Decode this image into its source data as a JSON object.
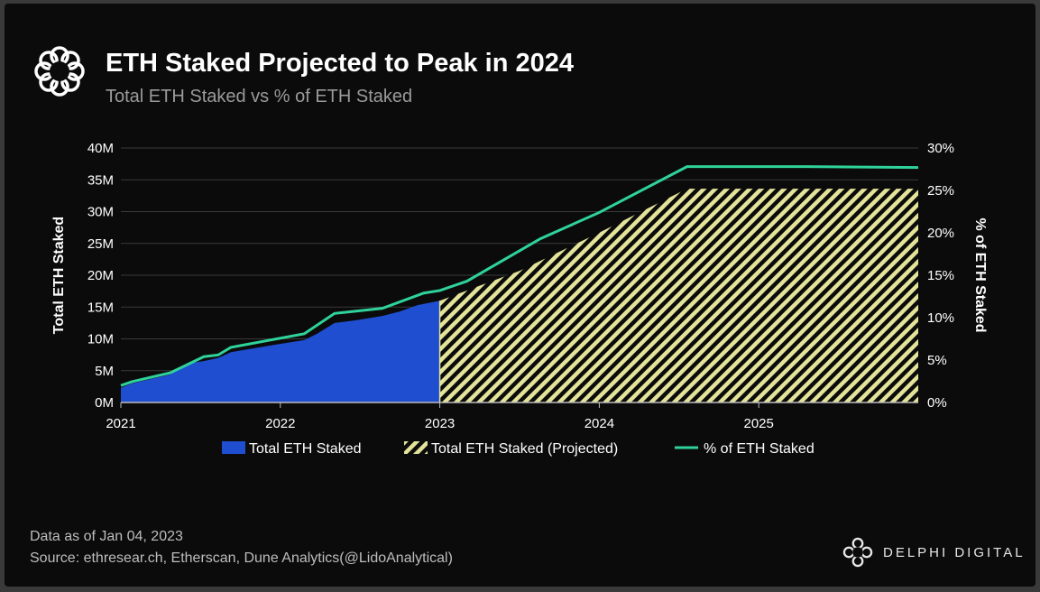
{
  "header": {
    "title": "ETH Staked Projected to Peak in 2024",
    "subtitle": "Total ETH Staked vs % of ETH Staked",
    "logo_icon": "delphi-knot-icon"
  },
  "footer": {
    "data_as_of": "Data as of Jan 04, 2023",
    "source": "Source: ethresear.ch, Etherscan, Dune Analytics(@LidoAnalytical)",
    "brand": "DELPHI DIGITAL"
  },
  "colors": {
    "background": "#0b0b0b",
    "staked": "#1f4fd0",
    "projected": "#e3e39a",
    "percent": "#2fd39a"
  },
  "chart_data": {
    "type": "area",
    "title": "ETH Staked Projected to Peak in 2024",
    "subtitle": "Total ETH Staked vs % of ETH Staked",
    "xlabel": "",
    "ylabel": "Total ETH Staked",
    "y2label": "% of ETH Staked",
    "xlim": [
      2021,
      2026
    ],
    "ylim": [
      0,
      40
    ],
    "y2lim": [
      0,
      30
    ],
    "x_ticks": [
      "2021",
      "2022",
      "2023",
      "2024",
      "2025"
    ],
    "y_ticks": [
      "0M",
      "5M",
      "10M",
      "15M",
      "20M",
      "25M",
      "30M",
      "35M",
      "40M"
    ],
    "y2_ticks": [
      "0%",
      "5%",
      "10%",
      "15%",
      "20%",
      "25%",
      "30%"
    ],
    "grid": "horizontal",
    "legend": "bottom",
    "series": [
      {
        "name": "Total ETH Staked",
        "axis": "left",
        "unit": "M ETH",
        "points": [
          [
            2021.0,
            2.3
          ],
          [
            2021.07,
            3.0
          ],
          [
            2021.31,
            4.4
          ],
          [
            2021.41,
            6.1
          ],
          [
            2021.52,
            6.5
          ],
          [
            2021.61,
            7.0
          ],
          [
            2021.69,
            7.9
          ],
          [
            2021.97,
            9.1
          ],
          [
            2022.15,
            9.8
          ],
          [
            2022.23,
            10.8
          ],
          [
            2022.34,
            12.5
          ],
          [
            2022.47,
            12.9
          ],
          [
            2022.64,
            13.6
          ],
          [
            2022.75,
            14.3
          ],
          [
            2022.86,
            15.3
          ],
          [
            2023.0,
            16.0
          ]
        ]
      },
      {
        "name": "Total ETH Staked (Projected)",
        "axis": "left",
        "unit": "M ETH",
        "points": [
          [
            2023.0,
            16.0
          ],
          [
            2023.5,
            20.7
          ],
          [
            2024.0,
            26.7
          ],
          [
            2024.55,
            33.6
          ],
          [
            2026.0,
            33.6
          ]
        ]
      },
      {
        "name": "% of ETH Staked",
        "axis": "right",
        "unit": "%",
        "points": [
          [
            2021.0,
            2.0
          ],
          [
            2021.07,
            2.45
          ],
          [
            2021.31,
            3.5
          ],
          [
            2021.52,
            5.4
          ],
          [
            2021.61,
            5.6
          ],
          [
            2021.69,
            6.5
          ],
          [
            2022.15,
            8.1
          ],
          [
            2022.34,
            10.5
          ],
          [
            2022.64,
            11.1
          ],
          [
            2022.9,
            12.9
          ],
          [
            2023.0,
            13.2
          ],
          [
            2023.17,
            14.3
          ],
          [
            2023.63,
            19.3
          ],
          [
            2024.0,
            22.4
          ],
          [
            2024.55,
            27.8
          ],
          [
            2025.3,
            27.8
          ],
          [
            2026.0,
            27.7
          ]
        ]
      }
    ]
  }
}
